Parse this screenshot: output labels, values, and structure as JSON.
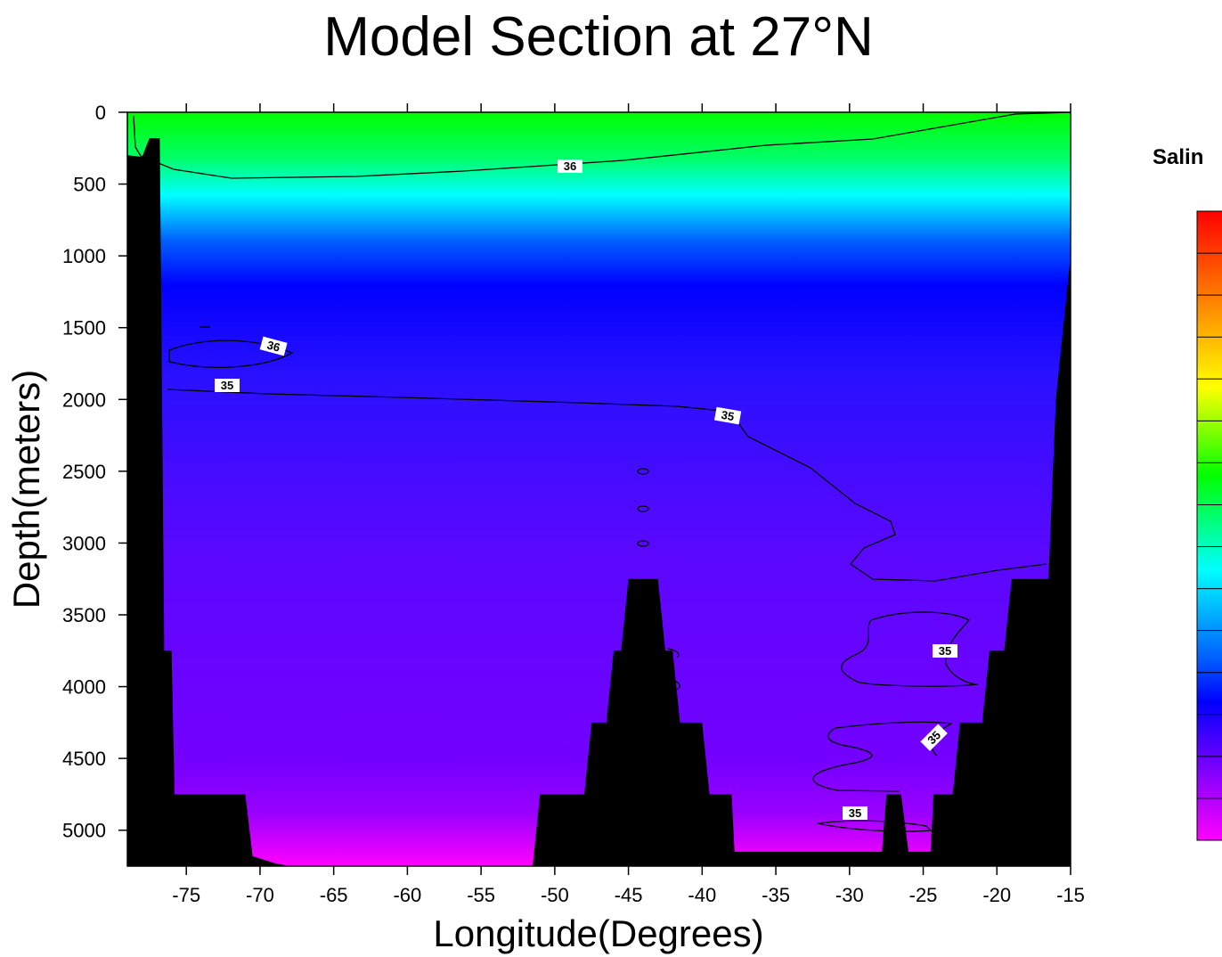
{
  "chart_data": {
    "type": "heatmap",
    "title": "Model Section at 27°N",
    "xlabel": "Longitude(Degrees)",
    "ylabel": "Depth(meters)",
    "xlim": [
      -79,
      -15
    ],
    "ylim": [
      5250,
      0
    ],
    "x_ticks": [
      -75,
      -70,
      -65,
      -60,
      -55,
      -50,
      -45,
      -40,
      -35,
      -30,
      -25,
      -20,
      -15
    ],
    "y_ticks": [
      0,
      500,
      1000,
      1500,
      2000,
      2500,
      3000,
      3500,
      4000,
      4500,
      5000
    ],
    "colorbar_label": "Salin",
    "colorscale": [
      "#ff0000",
      "#ff7f00",
      "#ffff00",
      "#00ff00",
      "#00ffff",
      "#0000ff",
      "#8a00ff",
      "#ff00ff"
    ],
    "contour_labels": [
      "36",
      "36",
      "35",
      "35",
      "35",
      "35",
      "35"
    ],
    "bathymetry": [
      [
        -79,
        300
      ],
      [
        -78,
        310
      ],
      [
        -77.5,
        180
      ],
      [
        -76.8,
        180
      ],
      [
        -76.5,
        3750
      ],
      [
        -76,
        3750
      ],
      [
        -75.8,
        4750
      ],
      [
        -71,
        4750
      ],
      [
        -70.5,
        5180
      ],
      [
        -69,
        5230
      ],
      [
        -68,
        5250
      ],
      [
        -51.5,
        5250
      ],
      [
        -51,
        4750
      ],
      [
        -48,
        4750
      ],
      [
        -47.5,
        4250
      ],
      [
        -46.5,
        4250
      ],
      [
        -46,
        3750
      ],
      [
        -45.5,
        3750
      ],
      [
        -45,
        3250
      ],
      [
        -43,
        3250
      ],
      [
        -42.5,
        3750
      ],
      [
        -42,
        3750
      ],
      [
        -41.5,
        4250
      ],
      [
        -40,
        4250
      ],
      [
        -39.5,
        4750
      ],
      [
        -38,
        4750
      ],
      [
        -37.8,
        5150
      ],
      [
        -27.8,
        5150
      ],
      [
        -27.5,
        4750
      ],
      [
        -26.5,
        4750
      ],
      [
        -26,
        5150
      ],
      [
        -24.5,
        5150
      ],
      [
        -24.3,
        4750
      ],
      [
        -23,
        4750
      ],
      [
        -22.5,
        4250
      ],
      [
        -21,
        4250
      ],
      [
        -20.5,
        3750
      ],
      [
        -19.5,
        3750
      ],
      [
        -19,
        3250
      ],
      [
        -16.5,
        3250
      ],
      [
        -16,
        2000
      ],
      [
        -15.5,
        1500
      ],
      [
        -15,
        1000
      ],
      [
        -15,
        5250
      ],
      [
        -79,
        5250
      ]
    ]
  }
}
